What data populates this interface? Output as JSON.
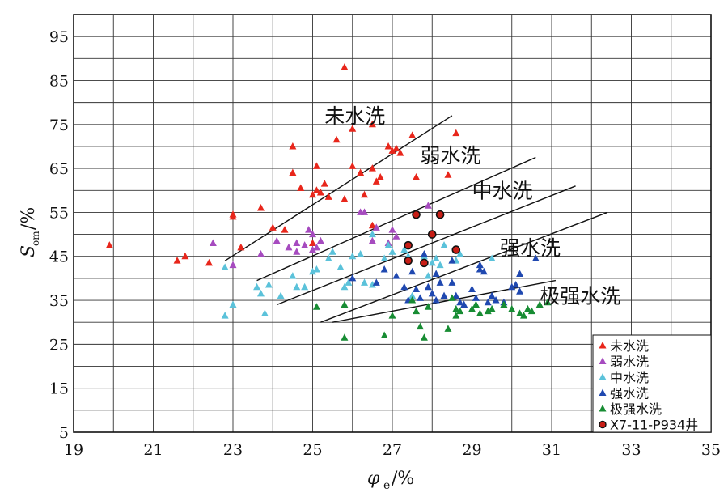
{
  "chart_data": {
    "type": "scatter",
    "title": "",
    "xlabel": "φe/%",
    "ylabel": "Som/%",
    "xlim": [
      19,
      35
    ],
    "ylim": [
      5,
      100
    ],
    "xticks": [
      19,
      21,
      23,
      25,
      27,
      29,
      31,
      33,
      35
    ],
    "yticks": [
      5,
      15,
      25,
      35,
      45,
      55,
      65,
      75,
      85,
      95
    ],
    "x_minor_step": 1,
    "y_minor_step": 5,
    "grid": true,
    "legend_position": "bottom-right",
    "zone_labels": [
      {
        "text": "未水洗",
        "x": 25.3,
        "y": 77
      },
      {
        "text": "弱水洗",
        "x": 27.7,
        "y": 68
      },
      {
        "text": "中水洗",
        "x": 29.0,
        "y": 60
      },
      {
        "text": "强水洗",
        "x": 29.7,
        "y": 47
      },
      {
        "text": "极强水洗",
        "x": 30.7,
        "y": 36
      }
    ],
    "boundary_lines": [
      {
        "x": [
          22.8,
          28.5
        ],
        "y": [
          44,
          77
        ]
      },
      {
        "x": [
          23.6,
          30.6
        ],
        "y": [
          39.5,
          67.5
        ]
      },
      {
        "x": [
          24.1,
          31.6
        ],
        "y": [
          34,
          61
        ]
      },
      {
        "x": [
          25.2,
          32.4
        ],
        "y": [
          30,
          55
        ]
      },
      {
        "x": [
          25.5,
          31.1
        ],
        "y": [
          30,
          39.5
        ]
      }
    ],
    "series": [
      {
        "name": "未水洗",
        "color": "#e8261b",
        "marker": "triangle",
        "points": [
          [
            19.9,
            47.5
          ],
          [
            21.6,
            44.0
          ],
          [
            21.8,
            45.0
          ],
          [
            22.4,
            43.5
          ],
          [
            23.0,
            54.5
          ],
          [
            23.0,
            54.0
          ],
          [
            23.2,
            47.0
          ],
          [
            23.7,
            56.0
          ],
          [
            24.0,
            51.5
          ],
          [
            24.3,
            51.0
          ],
          [
            24.5,
            64.0
          ],
          [
            24.5,
            70.0
          ],
          [
            24.7,
            60.5
          ],
          [
            25.0,
            59.0
          ],
          [
            25.1,
            65.5
          ],
          [
            25.1,
            60.0
          ],
          [
            25.2,
            59.5
          ],
          [
            25.3,
            61.5
          ],
          [
            25.4,
            58.5
          ],
          [
            25.6,
            71.5
          ],
          [
            25.8,
            58.0
          ],
          [
            25.8,
            88.0
          ],
          [
            26.0,
            65.5
          ],
          [
            26.0,
            74.0
          ],
          [
            26.2,
            64.0
          ],
          [
            26.3,
            59.0
          ],
          [
            26.5,
            65.0
          ],
          [
            26.5,
            75.0
          ],
          [
            26.6,
            62.0
          ],
          [
            26.7,
            63.0
          ],
          [
            26.9,
            70.0
          ],
          [
            27.0,
            69.0
          ],
          [
            27.1,
            69.5
          ],
          [
            27.2,
            68.5
          ],
          [
            27.5,
            72.5
          ],
          [
            27.6,
            63.0
          ],
          [
            28.4,
            63.5
          ],
          [
            28.6,
            73.0
          ],
          [
            25.0,
            48.0
          ],
          [
            26.5,
            52.0
          ]
        ]
      },
      {
        "name": "弱水洗",
        "color": "#a64bbf",
        "marker": "triangle",
        "points": [
          [
            22.5,
            48.0
          ],
          [
            23.0,
            43.0
          ],
          [
            23.7,
            45.5
          ],
          [
            24.1,
            48.5
          ],
          [
            24.4,
            47.0
          ],
          [
            24.6,
            48.0
          ],
          [
            24.6,
            46.0
          ],
          [
            24.8,
            47.5
          ],
          [
            24.9,
            51.0
          ],
          [
            25.0,
            50.0
          ],
          [
            25.0,
            46.5
          ],
          [
            25.2,
            48.5
          ],
          [
            26.2,
            55.0
          ],
          [
            26.3,
            55.0
          ],
          [
            26.5,
            48.5
          ],
          [
            26.6,
            51.5
          ],
          [
            27.0,
            51.0
          ],
          [
            27.1,
            49.5
          ],
          [
            27.4,
            47.5
          ],
          [
            27.9,
            56.5
          ],
          [
            26.9,
            48.0
          ],
          [
            25.1,
            47.0
          ]
        ]
      },
      {
        "name": "中水洗",
        "color": "#5bc2da",
        "marker": "triangle",
        "points": [
          [
            22.8,
            31.5
          ],
          [
            22.8,
            42.5
          ],
          [
            23.0,
            34.0
          ],
          [
            23.6,
            38.0
          ],
          [
            23.7,
            36.5
          ],
          [
            23.8,
            32.0
          ],
          [
            23.9,
            38.5
          ],
          [
            24.2,
            36.0
          ],
          [
            24.5,
            40.5
          ],
          [
            24.6,
            38.0
          ],
          [
            24.8,
            38.0
          ],
          [
            25.0,
            41.5
          ],
          [
            25.1,
            42.0
          ],
          [
            25.4,
            44.5
          ],
          [
            25.5,
            46.0
          ],
          [
            25.7,
            42.5
          ],
          [
            25.9,
            39.0
          ],
          [
            26.0,
            45.0
          ],
          [
            26.2,
            45.5
          ],
          [
            26.3,
            39.0
          ],
          [
            26.5,
            38.5
          ],
          [
            26.5,
            50.0
          ],
          [
            26.8,
            44.5
          ],
          [
            26.9,
            47.5
          ],
          [
            27.0,
            46.0
          ],
          [
            27.3,
            46.5
          ],
          [
            27.4,
            45.0
          ],
          [
            27.5,
            36.0
          ],
          [
            27.9,
            40.5
          ],
          [
            28.0,
            43.5
          ],
          [
            28.1,
            44.5
          ],
          [
            28.2,
            43.0
          ],
          [
            28.3,
            47.5
          ],
          [
            28.6,
            44.0
          ],
          [
            28.7,
            45.5
          ],
          [
            29.5,
            44.5
          ],
          [
            27.8,
            45.0
          ],
          [
            25.8,
            38.0
          ]
        ]
      },
      {
        "name": "强水洗",
        "color": "#1f48b0",
        "marker": "triangle",
        "points": [
          [
            26.0,
            40.0
          ],
          [
            26.6,
            39.0
          ],
          [
            26.8,
            42.0
          ],
          [
            27.1,
            40.5
          ],
          [
            27.3,
            38.0
          ],
          [
            27.5,
            41.5
          ],
          [
            27.6,
            37.5
          ],
          [
            27.7,
            35.5
          ],
          [
            27.8,
            45.5
          ],
          [
            27.9,
            38.0
          ],
          [
            28.0,
            36.5
          ],
          [
            28.1,
            41.0
          ],
          [
            28.2,
            39.0
          ],
          [
            28.3,
            36.0
          ],
          [
            28.5,
            44.0
          ],
          [
            28.5,
            39.0
          ],
          [
            28.6,
            36.0
          ],
          [
            28.7,
            34.5
          ],
          [
            28.8,
            34.0
          ],
          [
            29.0,
            37.5
          ],
          [
            29.1,
            35.5
          ],
          [
            29.2,
            43.0
          ],
          [
            29.3,
            41.5
          ],
          [
            29.4,
            34.5
          ],
          [
            29.5,
            36.0
          ],
          [
            29.6,
            35.0
          ],
          [
            29.8,
            34.5
          ],
          [
            30.0,
            38.0
          ],
          [
            30.1,
            38.5
          ],
          [
            30.2,
            41.0
          ],
          [
            30.6,
            44.5
          ],
          [
            27.4,
            35.0
          ],
          [
            28.1,
            35.0
          ],
          [
            29.2,
            42.0
          ],
          [
            30.2,
            37.0
          ]
        ]
      },
      {
        "name": "极强水洗",
        "color": "#178c33",
        "marker": "triangle",
        "points": [
          [
            25.1,
            33.5
          ],
          [
            25.8,
            34.0
          ],
          [
            25.8,
            26.5
          ],
          [
            26.8,
            27.0
          ],
          [
            27.0,
            31.5
          ],
          [
            27.5,
            35.0
          ],
          [
            27.7,
            29.0
          ],
          [
            27.8,
            26.5
          ],
          [
            27.9,
            33.5
          ],
          [
            28.4,
            28.5
          ],
          [
            28.6,
            33.0
          ],
          [
            28.7,
            32.5
          ],
          [
            29.0,
            33.0
          ],
          [
            29.1,
            34.0
          ],
          [
            29.2,
            32.0
          ],
          [
            29.4,
            32.5
          ],
          [
            29.5,
            33.0
          ],
          [
            29.8,
            34.0
          ],
          [
            30.0,
            33.0
          ],
          [
            30.2,
            32.0
          ],
          [
            30.4,
            33.0
          ],
          [
            30.5,
            32.5
          ],
          [
            30.7,
            34.0
          ],
          [
            30.9,
            34.5
          ],
          [
            28.5,
            35.5
          ],
          [
            27.6,
            32.5
          ],
          [
            30.3,
            31.5
          ],
          [
            28.6,
            31.5
          ]
        ]
      },
      {
        "name": "X7-11-P934井",
        "color": "#c81e16",
        "marker": "circle",
        "points": [
          [
            27.6,
            54.5
          ],
          [
            28.2,
            54.5
          ],
          [
            28.0,
            50.0
          ],
          [
            27.4,
            47.5
          ],
          [
            28.6,
            46.5
          ],
          [
            27.4,
            44.0
          ],
          [
            27.8,
            43.5
          ]
        ]
      }
    ]
  }
}
